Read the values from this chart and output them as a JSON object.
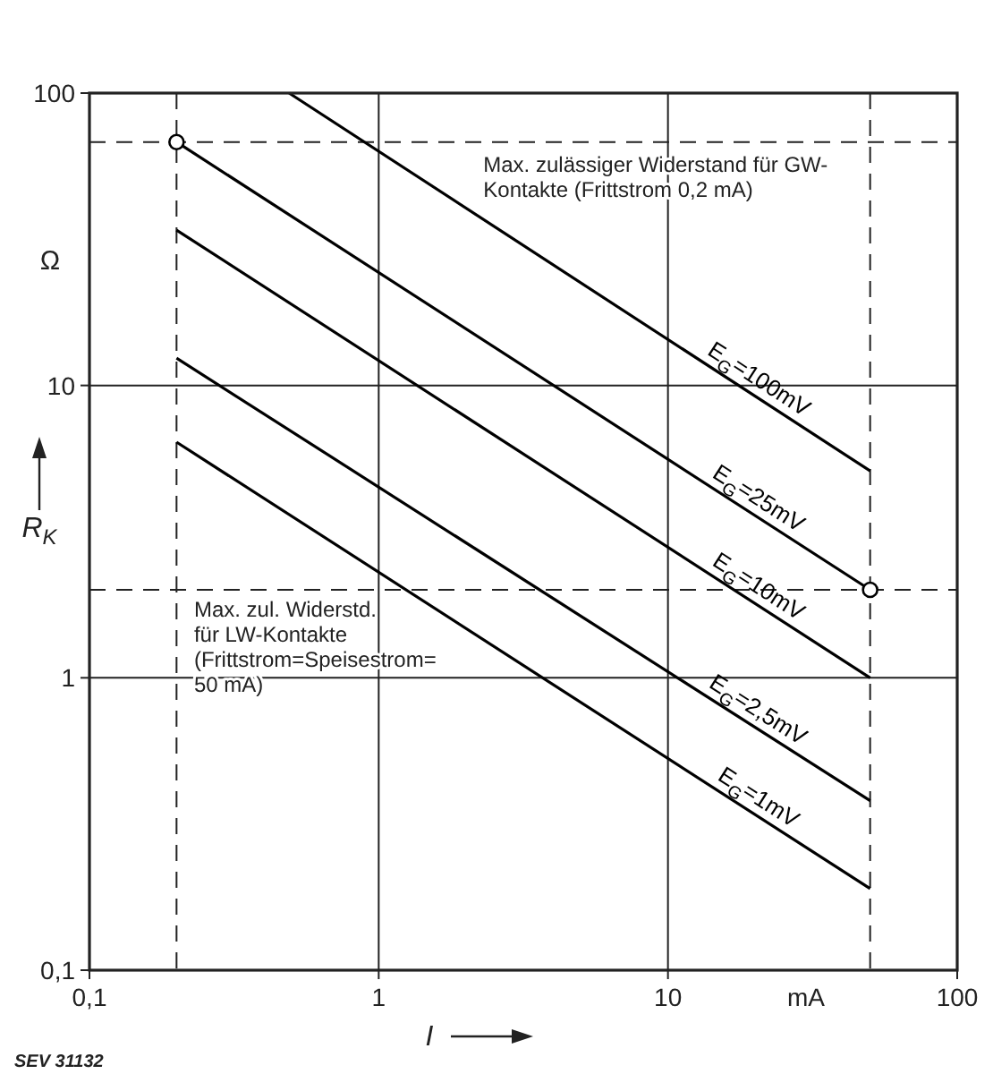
{
  "chart_data": {
    "type": "line",
    "ylabel": "R$_{K}$",
    "xlabel": "I",
    "log": "xy",
    "grid": true,
    "marker": "none",
    "line_style": "solid",
    "xlim": [
      0.1,
      100
    ],
    "ylim": [
      0.1,
      100
    ],
    "xticks": [
      {
        "value": 0.1,
        "label": "0,1"
      },
      1,
      10,
      100
    ],
    "yticks": [
      {
        "value": 0.1,
        "label": "0,1"
      },
      1,
      10,
      100
    ],
    "series": [
      {
        "name": "E$_{G}$=100mV",
        "color": "#000000",
        "x": [
          0.49,
          50
        ],
        "values": [
          100,
          5.1
        ]
      },
      {
        "name": "E$_{G}$=25mV",
        "color": "#000000",
        "x": [
          0.2,
          50
        ],
        "values": [
          68,
          2
        ]
      },
      {
        "name": "E$_{G}$=10mV",
        "color": "#000000",
        "x": [
          0.2,
          50
        ],
        "values": [
          34,
          1
        ]
      },
      {
        "name": "E$_{G}$=2,5mV",
        "color": "#000000",
        "x": [
          0.2,
          50
        ],
        "values": [
          12.4,
          0.38
        ]
      },
      {
        "name": "E$_{G}$=1mV",
        "color": "#000000",
        "x": [
          0.2,
          50
        ],
        "values": [
          6.4,
          0.19
        ]
      },
      {
        "type": "scatter",
        "color": "#000000",
        "marker": "circle",
        "x": [
          0.2,
          50
        ],
        "values": [
          68,
          2
        ]
      }
    ],
    "ref_lines": [
      {
        "axis": "y",
        "value": 68,
        "line_style": "dashed"
      },
      {
        "axis": "y",
        "value": 2,
        "line_style": "dashed"
      },
      {
        "axis": "x",
        "value": 0.2,
        "line_style": "dashed"
      },
      {
        "axis": "x",
        "value": 50,
        "line_style": "dashed"
      }
    ],
    "annotations": [
      "Max. zulässiger Widerstand für GW-\nKontakte (Frittstrom 0,2 mA)",
      "Max. zul. Widerstd.\nfür LW-Kontakte\n(Frittstrom=Speisestrom=\n50 mA)",
      "Ω",
      "mA",
      "SEV 31132"
    ]
  }
}
